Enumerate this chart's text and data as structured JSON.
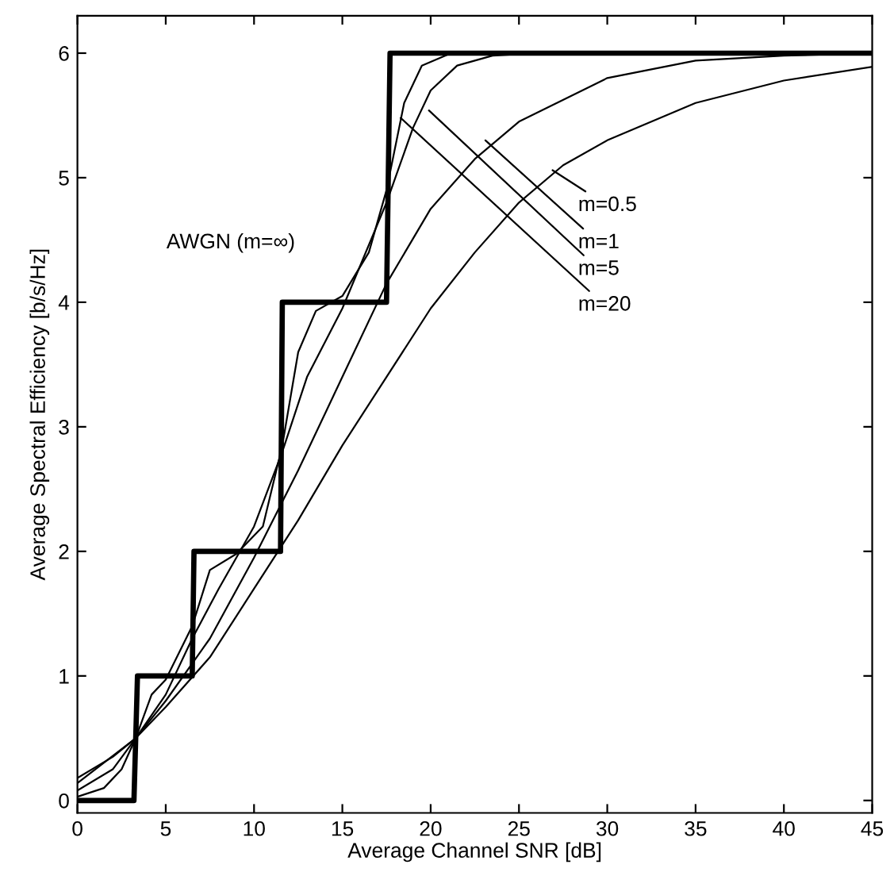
{
  "chart_data": {
    "type": "line",
    "xlabel": "Average Channel SNR [dB]",
    "ylabel": "Average Spectral Efficiency [b/s/Hz]",
    "xlim": [
      0,
      45
    ],
    "ylim": [
      -0.1,
      6.3
    ],
    "xticks": [
      0,
      5,
      10,
      15,
      20,
      25,
      30,
      35,
      40,
      45
    ],
    "yticks": [
      0,
      1,
      2,
      3,
      4,
      5,
      6
    ],
    "grid": false,
    "legend": false,
    "marker": "none",
    "line_style": "solid",
    "series": [
      {
        "color": "#000000",
        "x": [
          0,
          3.2,
          3.4,
          6.5,
          6.6,
          11.5,
          11.6,
          17.5,
          17.7,
          45
        ],
        "values": [
          0,
          0,
          1,
          1,
          2,
          2,
          4,
          4,
          6,
          6
        ]
      },
      {
        "color": "#000000",
        "x": [
          0,
          2,
          3.3,
          5,
          7.5,
          10,
          12.5,
          15,
          17.5,
          20,
          22.5,
          25,
          27.5,
          30,
          35,
          40,
          45
        ],
        "values": [
          0.18,
          0.35,
          0.5,
          0.75,
          1.15,
          1.7,
          2.25,
          2.85,
          3.4,
          3.95,
          4.4,
          4.8,
          5.1,
          5.3,
          5.6,
          5.78,
          5.89
        ]
      },
      {
        "color": "#000000",
        "x": [
          0,
          3.3,
          5,
          7.5,
          10,
          12.5,
          15,
          17.5,
          20,
          22.5,
          25,
          30,
          35,
          40,
          45
        ],
        "values": [
          0.14,
          0.5,
          0.8,
          1.3,
          1.95,
          2.65,
          3.4,
          4.15,
          4.75,
          5.15,
          5.45,
          5.8,
          5.94,
          5.98,
          6
        ]
      },
      {
        "color": "#000000",
        "x": [
          0,
          2,
          3.3,
          5,
          6.5,
          8,
          10,
          11.6,
          13,
          15,
          17.5,
          19,
          20,
          21.5,
          23.5,
          26,
          45
        ],
        "values": [
          0.08,
          0.25,
          0.5,
          0.85,
          1.3,
          1.7,
          2.2,
          2.8,
          3.4,
          3.95,
          4.8,
          5.4,
          5.7,
          5.9,
          5.98,
          6,
          6
        ]
      },
      {
        "color": "#000000",
        "x": [
          0,
          1.5,
          2.5,
          3.3,
          4.2,
          5,
          6.5,
          7.5,
          9,
          10.5,
          11.6,
          12.5,
          13.5,
          15,
          16.5,
          17.5,
          18.5,
          19.5,
          21,
          25,
          45
        ],
        "values": [
          0.03,
          0.1,
          0.25,
          0.5,
          0.85,
          0.97,
          1.4,
          1.85,
          1.98,
          2.2,
          2.85,
          3.6,
          3.93,
          4.05,
          4.4,
          4.9,
          5.6,
          5.9,
          5.99,
          6,
          6
        ]
      }
    ],
    "annotations": [
      "AWGN (m=∞)",
      {
        "text": "m=0.5",
        "x": 26.9,
        "y": 5.06
      },
      {
        "text": "m=1",
        "x": 23.1,
        "y": 5.3
      },
      {
        "text": "m=5",
        "x": 19.9,
        "y": 5.54
      },
      {
        "text": "m=20",
        "x": 18.3,
        "y": 5.48
      }
    ]
  }
}
